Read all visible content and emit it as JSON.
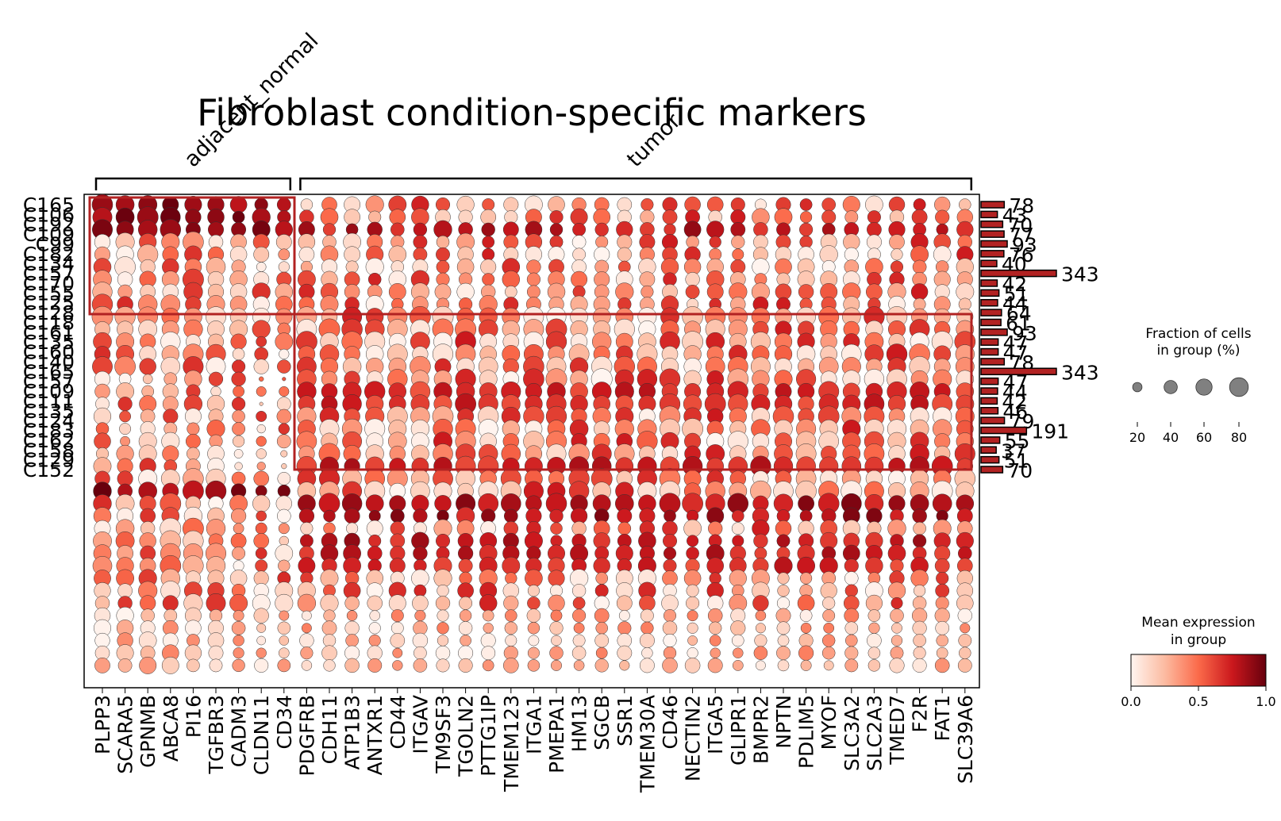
{
  "chart_data": {
    "type": "dotplot",
    "title": "Fibroblast condition-specific markers",
    "groups": [
      {
        "name": "adjacent_normal",
        "genes": [
          "PLPP3",
          "SCARA5",
          "GPNMB",
          "ABCA8",
          "PI16",
          "TGFBR3",
          "CADM3",
          "CLDN11",
          "CD34"
        ]
      },
      {
        "name": "tumor",
        "genes": [
          "PDGFRB",
          "CDH11",
          "ATP1B3",
          "ANTXR1",
          "CD44",
          "ITGAV",
          "TM9SF3",
          "TGOLN2",
          "PTTG1IP",
          "TMEM123",
          "ITGA1",
          "PMEPA1",
          "HM13",
          "SGCB",
          "SSR1",
          "TMEM30A",
          "CD46",
          "NECTIN2",
          "ITGA5",
          "GLIPR1",
          "BMPR2",
          "NPTN",
          "PDLIM5",
          "MYOF",
          "SLC3A2",
          "SLC2A3",
          "TMED7",
          "F2R",
          "FAT1",
          "SLC39A6"
        ]
      }
    ],
    "row_labels": [
      "C165",
      "C106",
      "C192",
      "C109",
      "C99",
      "C182",
      "C134",
      "C157",
      "C170",
      "C155",
      "C125",
      "C128",
      "C118",
      "C161",
      "C135",
      "C160",
      "C140",
      "C165",
      "C157",
      "C109",
      "C111",
      "C135",
      "C124",
      "C183",
      "C162",
      "C158",
      "C129",
      "C152"
    ],
    "row_counts": [
      78,
      43,
      70,
      77,
      93,
      76,
      40,
      343,
      42,
      51,
      44,
      64,
      61,
      93,
      47,
      47,
      78,
      343,
      47,
      44,
      42,
      46,
      79,
      191,
      55,
      37,
      51,
      70
    ],
    "highlight_boxes": [
      {
        "group": "adjacent_normal",
        "rows": "upper block"
      },
      {
        "group": "tumor",
        "rows": "middle block"
      }
    ],
    "size_legend": {
      "title_line1": "Fraction of cells",
      "title_line2": "in group (%)",
      "ticks": [
        20,
        40,
        60,
        80
      ]
    },
    "color_legend": {
      "title_line1": "Mean expression",
      "title_line2": "in group",
      "ticks": [
        "0.0",
        "0.5",
        "1.0"
      ],
      "colormap": "Reds",
      "range": [
        0,
        1
      ]
    },
    "colors": {
      "bar": "#b22222",
      "box": "#b22222",
      "bracket": "#000000"
    }
  }
}
